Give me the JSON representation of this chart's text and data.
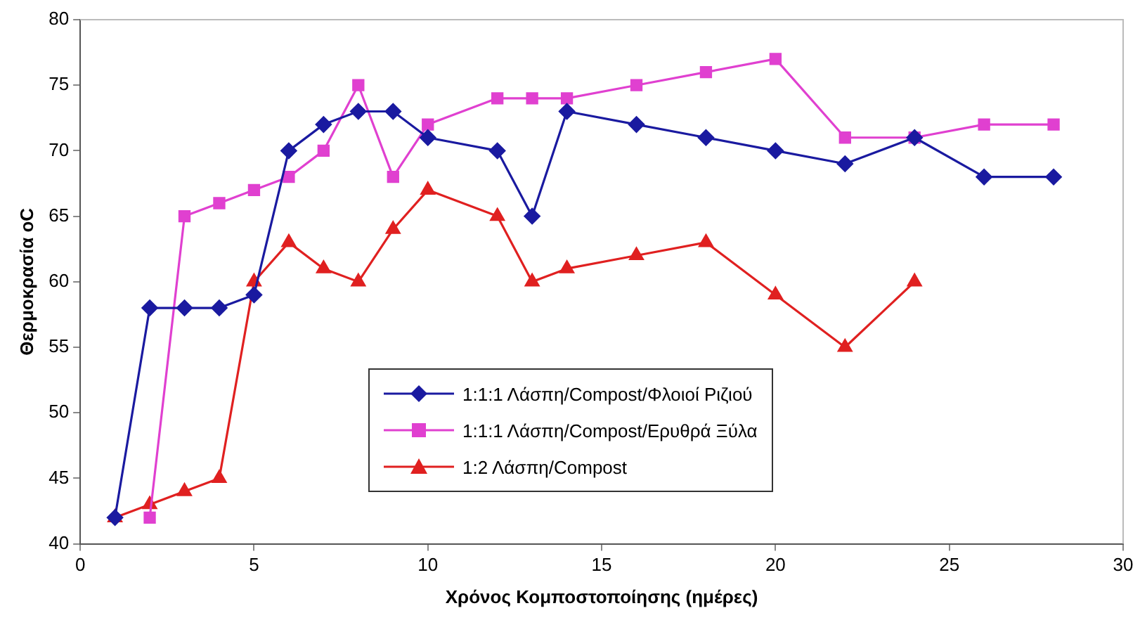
{
  "chart_data": {
    "type": "line",
    "xlabel": "Χρόνος Κομποστοποίησης (ημέρες)",
    "ylabel": "Θερμοκρασία oC",
    "xlim": [
      0,
      30
    ],
    "xticks": [
      0,
      5,
      10,
      15,
      20,
      25,
      30
    ],
    "ylim": [
      40,
      80
    ],
    "yticks": [
      40,
      45,
      50,
      55,
      60,
      65,
      70,
      75,
      80
    ],
    "grid": false,
    "legend": "bottom",
    "series": [
      {
        "name": "1:1:1 Λάσπη/Compost/Φλοιοί Ριζιού",
        "color": "#1a1aa0",
        "marker": "diamond",
        "x": [
          1,
          2,
          3,
          4,
          5,
          6,
          7,
          8,
          9,
          10,
          12,
          13,
          14,
          16,
          18,
          20,
          22,
          24,
          26,
          28
        ],
        "values": [
          42,
          58,
          58,
          58,
          59,
          70,
          72,
          73,
          73,
          71,
          70,
          65,
          73,
          72,
          71,
          70,
          69,
          71,
          68,
          68
        ]
      },
      {
        "name": "1:1:1 Λάσπη/Compost/Ερυθρά Ξύλα",
        "color": "#e040d0",
        "marker": "square",
        "x": [
          2,
          3,
          4,
          5,
          6,
          7,
          8,
          9,
          10,
          12,
          13,
          14,
          16,
          18,
          20,
          22,
          24,
          26,
          28
        ],
        "values": [
          42,
          65,
          66,
          67,
          68,
          70,
          75,
          68,
          72,
          74,
          74,
          74,
          75,
          76,
          77,
          71,
          71,
          72,
          72
        ]
      },
      {
        "name": "1:2 Λάσπη/Compost",
        "color": "#e02020",
        "marker": "triangle",
        "x": [
          1,
          2,
          3,
          4,
          5,
          6,
          7,
          8,
          9,
          10,
          12,
          13,
          14,
          16,
          18,
          20,
          22,
          24
        ],
        "values": [
          42,
          43,
          44,
          45,
          60,
          63,
          61,
          60,
          64,
          67,
          65,
          60,
          61,
          62,
          63,
          59,
          55,
          60
        ]
      }
    ]
  }
}
